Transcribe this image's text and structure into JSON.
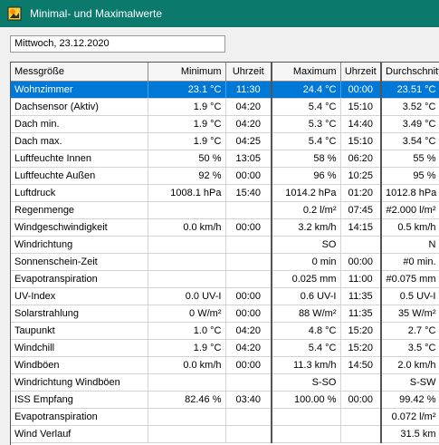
{
  "window": {
    "title": "Minimal- und Maximalwerte",
    "icon": "weather-app-icon",
    "titlebar_color": "#0b7a6d"
  },
  "date_field": {
    "value": "Mittwoch, 23.12.2020"
  },
  "table": {
    "selection_color": "#0078d7",
    "columns": [
      "Messgröße",
      "Minimum",
      "Uhrzeit",
      "Maximum",
      "Uhrzeit",
      "Durchschnitt"
    ],
    "rows": [
      [
        "Wohnzimmer",
        "23.1 °C",
        "11:30",
        "24.4 °C",
        "00:00",
        "23.51 °C"
      ],
      [
        "Dachsensor (Aktiv)",
        "1.9 °C",
        "04:20",
        "5.4 °C",
        "15:10",
        "3.52 °C"
      ],
      [
        "Dach min.",
        "1.9 °C",
        "04:20",
        "5.3 °C",
        "14:40",
        "3.49 °C"
      ],
      [
        "Dach max.",
        "1.9 °C",
        "04:25",
        "5.4 °C",
        "15:10",
        "3.54 °C"
      ],
      [
        "Luftfeuchte Innen",
        "50 %",
        "13:05",
        "58 %",
        "06:20",
        "55 %"
      ],
      [
        "Luftfeuchte Außen",
        "92 %",
        "00:00",
        "96 %",
        "10:25",
        "95 %"
      ],
      [
        "Luftdruck",
        "1008.1 hPa",
        "15:40",
        "1014.2 hPa",
        "01:20",
        "1012.8 hPa"
      ],
      [
        "Regenmenge",
        "",
        "",
        "0.2 l/m²",
        "07:45",
        "#2.000 l/m²"
      ],
      [
        "Windgeschwindigkeit",
        "0.0 km/h",
        "00:00",
        "3.2 km/h",
        "14:15",
        "0.5 km/h"
      ],
      [
        "Windrichtung",
        "",
        "",
        "SO",
        "",
        "N"
      ],
      [
        "Sonnenschein-Zeit",
        "",
        "",
        "0 min",
        "00:00",
        "#0 min."
      ],
      [
        "Evapotranspiration",
        "",
        "",
        "0.025 mm",
        "11:00",
        "#0.075 mm"
      ],
      [
        "UV-Index",
        "0.0 UV-I",
        "00:00",
        "0.6 UV-I",
        "11:35",
        "0.5 UV-I"
      ],
      [
        "Solarstrahlung",
        "0 W/m²",
        "00:00",
        "88 W/m²",
        "11:35",
        "35 W/m²"
      ],
      [
        "Taupunkt",
        "1.0 °C",
        "04:20",
        "4.8 °C",
        "15:20",
        "2.7 °C"
      ],
      [
        "Windchill",
        "1.9 °C",
        "04:20",
        "5.4 °C",
        "15:20",
        "3.5 °C"
      ],
      [
        "Windböen",
        "0.0 km/h",
        "00:00",
        "11.3 km/h",
        "14:50",
        "2.0 km/h"
      ],
      [
        "Windrichtung Windböen",
        "",
        "",
        "S-SO",
        "",
        "S-SW"
      ],
      [
        "ISS Empfang",
        "82.46 %",
        "03:40",
        "100.00 %",
        "00:00",
        "99.42 %"
      ],
      [
        "Evapotranspiration",
        "",
        "",
        "",
        "",
        "0.072 l/m²"
      ],
      [
        "Wind Verlauf",
        "",
        "",
        "",
        "",
        "31.5 km"
      ]
    ],
    "selected_row": 0
  }
}
